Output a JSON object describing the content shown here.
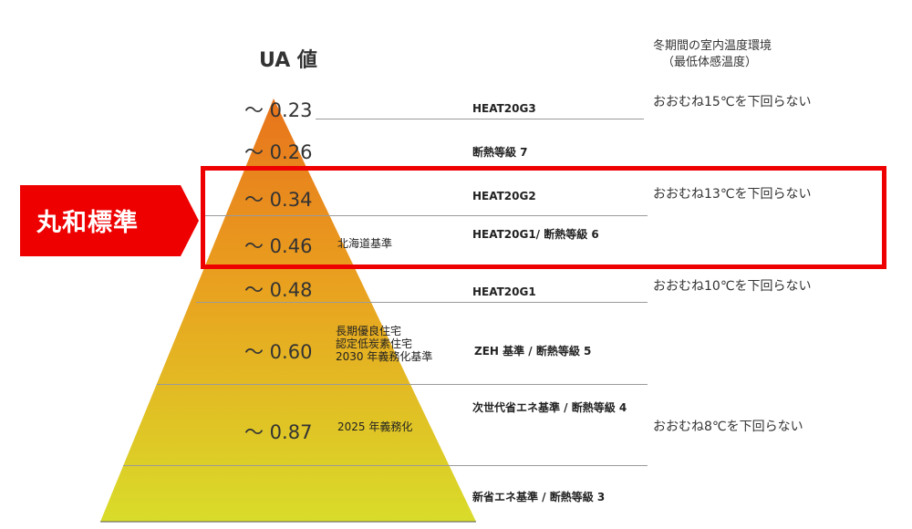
{
  "title": "UA 値",
  "temp_header": [
    "冬期間の室内温度環境",
    "（最低体感温度）"
  ],
  "tiers": [
    {
      "ua": "〜 0.23",
      "grade": "HEAT20G3",
      "note": []
    },
    {
      "ua": "〜 0.26",
      "grade": "断熱等級 7",
      "note": []
    },
    {
      "ua": "〜 0.34",
      "grade": "HEAT20G2",
      "note": []
    },
    {
      "ua": "〜 0.46",
      "grade": "HEAT20G1/ 断熱等級 6",
      "note": [
        "北海道基準"
      ]
    },
    {
      "ua": "〜 0.48",
      "grade": "HEAT20G1",
      "note": []
    },
    {
      "ua": "〜 0.60",
      "grade": "ZEH 基準 / 断熱等級 5",
      "note": [
        "長期優良住宅",
        "認定低炭素住宅",
        "2030 年義務化基準"
      ]
    },
    {
      "ua": "〜 0.87",
      "grade": "次世代省エネ基準 / 断熱等級 4",
      "note": [
        "2025 年義務化"
      ]
    },
    {
      "ua": "",
      "grade": "新省エネ基準 / 断熱等級 3",
      "note": []
    }
  ],
  "temperatures": [
    "おおむね15℃を下回らない",
    "おおむね13℃を下回らない",
    "おおむね10℃を下回らない",
    "おおむね8℃を下回らない"
  ],
  "highlight_badge": "丸和標準",
  "colors": {
    "accent": "#ee0000",
    "pyramid_top": "#e8731c",
    "pyramid_bottom": "#d9dc2a"
  }
}
